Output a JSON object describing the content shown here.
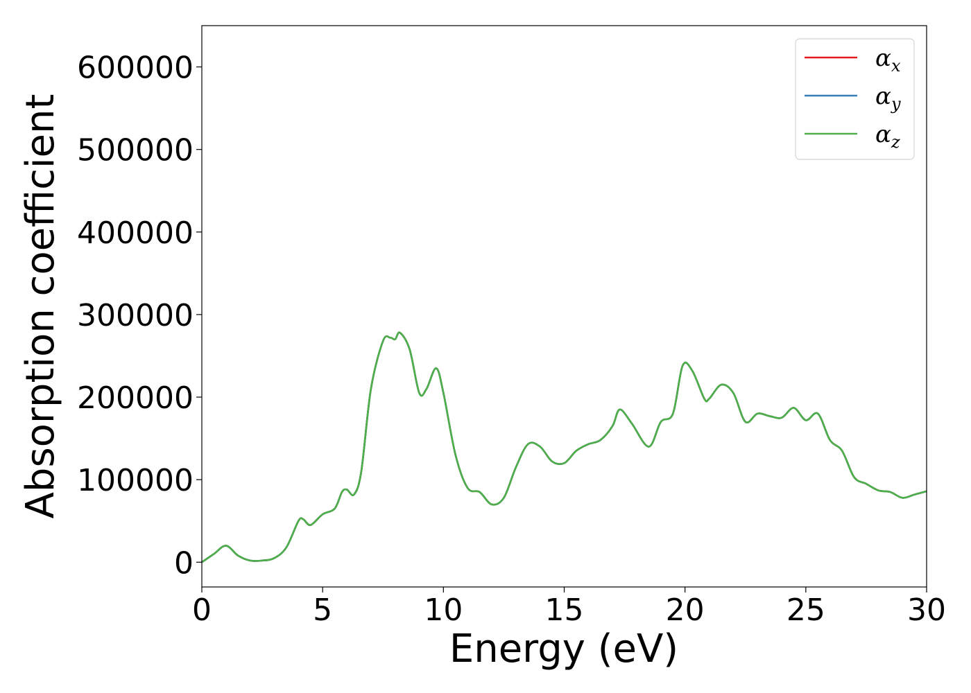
{
  "chart_data": {
    "type": "line",
    "xlabel": "Energy (eV)",
    "ylabel": "Absorption coefficient",
    "xlim": [
      0,
      30
    ],
    "ylim": [
      -30000,
      650000
    ],
    "xticks": [
      0,
      5,
      10,
      15,
      20,
      25,
      30
    ],
    "xtick_labels": [
      "0",
      "5",
      "10",
      "15",
      "20",
      "25",
      "30"
    ],
    "yticks": [
      0,
      100000,
      200000,
      300000,
      400000,
      500000,
      600000
    ],
    "ytick_labels": [
      "0",
      "100000",
      "200000",
      "300000",
      "400000",
      "500000",
      "600000"
    ],
    "grid": false,
    "legend_position": "top-right",
    "x": [
      0,
      0.5,
      1.0,
      1.5,
      2.0,
      2.5,
      3.0,
      3.5,
      4.0,
      4.2,
      4.5,
      5.0,
      5.5,
      5.8,
      6.0,
      6.3,
      6.6,
      7.0,
      7.5,
      7.8,
      8.0,
      8.2,
      8.6,
      9.0,
      9.3,
      9.7,
      10.0,
      10.5,
      11.0,
      11.5,
      12.0,
      12.5,
      13.0,
      13.5,
      14.0,
      14.5,
      15.0,
      15.5,
      16.0,
      16.5,
      17.0,
      17.3,
      17.8,
      18.5,
      19.0,
      19.5,
      19.9,
      20.3,
      20.8,
      21.0,
      21.5,
      22.0,
      22.5,
      23.0,
      23.5,
      24.0,
      24.5,
      25.0,
      25.5,
      26.0,
      26.5,
      27.0,
      27.5,
      28.0,
      28.5,
      29.0,
      29.5,
      30.0
    ],
    "series": [
      {
        "name": "αx",
        "color": "#e41a1c",
        "values": [
          0,
          10000,
          20000,
          8000,
          2000,
          2000,
          5000,
          18000,
          50000,
          52000,
          45000,
          58000,
          65000,
          85000,
          88000,
          82000,
          110000,
          210000,
          268000,
          272000,
          270000,
          278000,
          258000,
          205000,
          210000,
          235000,
          205000,
          130000,
          90000,
          85000,
          70000,
          78000,
          115000,
          143000,
          140000,
          122000,
          120000,
          135000,
          143000,
          148000,
          165000,
          185000,
          168000,
          140000,
          170000,
          180000,
          238000,
          232000,
          198000,
          198000,
          215000,
          205000,
          170000,
          180000,
          177000,
          175000,
          187000,
          172000,
          180000,
          148000,
          135000,
          103000,
          95000,
          87000,
          85000,
          78000,
          82000,
          86000
        ]
      },
      {
        "name": "αy",
        "color": "#377eb8",
        "values": [
          0,
          10000,
          20000,
          8000,
          2000,
          2000,
          5000,
          18000,
          50000,
          52000,
          45000,
          58000,
          65000,
          85000,
          88000,
          82000,
          110000,
          210000,
          268000,
          272000,
          270000,
          278000,
          258000,
          205000,
          210000,
          235000,
          205000,
          130000,
          90000,
          85000,
          70000,
          78000,
          115000,
          143000,
          140000,
          122000,
          120000,
          135000,
          143000,
          148000,
          165000,
          185000,
          168000,
          140000,
          170000,
          180000,
          238000,
          232000,
          198000,
          198000,
          215000,
          205000,
          170000,
          180000,
          177000,
          175000,
          187000,
          172000,
          180000,
          148000,
          135000,
          103000,
          95000,
          87000,
          85000,
          78000,
          82000,
          86000
        ]
      },
      {
        "name": "αz",
        "color": "#4daf4a",
        "values": [
          0,
          10000,
          20000,
          8000,
          2000,
          2000,
          5000,
          18000,
          50000,
          52000,
          45000,
          58000,
          65000,
          85000,
          88000,
          82000,
          110000,
          210000,
          268000,
          272000,
          270000,
          278000,
          258000,
          205000,
          210000,
          235000,
          205000,
          130000,
          90000,
          85000,
          70000,
          78000,
          115000,
          143000,
          140000,
          122000,
          120000,
          135000,
          143000,
          148000,
          165000,
          185000,
          168000,
          140000,
          170000,
          180000,
          238000,
          232000,
          198000,
          198000,
          215000,
          205000,
          170000,
          180000,
          177000,
          175000,
          187000,
          172000,
          180000,
          148000,
          135000,
          103000,
          95000,
          87000,
          85000,
          78000,
          82000,
          86000
        ]
      }
    ],
    "legend": [
      {
        "symbol": "α",
        "sub": "x"
      },
      {
        "symbol": "α",
        "sub": "y"
      },
      {
        "symbol": "α",
        "sub": "z"
      }
    ]
  }
}
